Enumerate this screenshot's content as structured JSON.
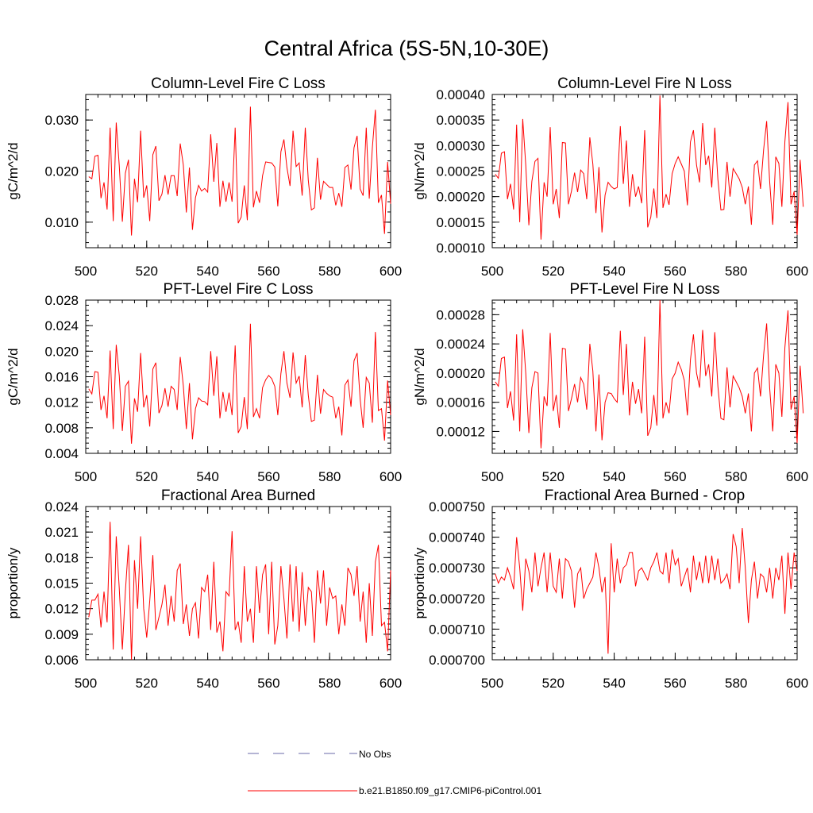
{
  "figure": {
    "title": "Central Africa (5S-5N,10-30E)",
    "series_color": "#ff0000",
    "obs_color": "#6a6aa8",
    "legend": [
      {
        "label": "No Obs",
        "style": "dashed",
        "color": "#6a6aa8"
      },
      {
        "label": "b.e21.B1850.f09_g17.CMIP6-piControl.001",
        "style": "solid",
        "color": "#ff0000"
      }
    ]
  },
  "chart_data": [
    {
      "type": "line",
      "title": "Column-Level Fire C Loss",
      "xlabel": "",
      "ylabel": "gC/m^2/d",
      "xlim": [
        500,
        600
      ],
      "ylim": [
        0.005,
        0.035
      ],
      "xticks": [
        "500",
        "520",
        "540",
        "560",
        "580",
        "600"
      ],
      "yticks": [
        0.01,
        0.02,
        0.03
      ],
      "yticklabels": [
        "0.010",
        "0.020",
        "0.030"
      ],
      "series": [
        {
          "name": "b.e21.B1850.f09_g17.CMIP6-piControl.001",
          "x_start": 501,
          "x_step": 1,
          "values": [
            0.0189,
            0.0185,
            0.0229,
            0.0231,
            0.0147,
            0.0178,
            0.0125,
            0.0285,
            0.0102,
            0.0295,
            0.0211,
            0.0101,
            0.0196,
            0.0222,
            0.0074,
            0.0185,
            0.0139,
            0.0279,
            0.0148,
            0.0172,
            0.0102,
            0.0232,
            0.0249,
            0.0142,
            0.0155,
            0.0192,
            0.0154,
            0.0191,
            0.0191,
            0.0151,
            0.0254,
            0.0212,
            0.0119,
            0.0207,
            0.0085,
            0.0148,
            0.0172,
            0.0161,
            0.0166,
            0.0159,
            0.0272,
            0.0179,
            0.0255,
            0.013,
            0.0181,
            0.014,
            0.0178,
            0.014,
            0.0285,
            0.0098,
            0.011,
            0.0172,
            0.0104,
            0.0326,
            0.0129,
            0.0161,
            0.0138,
            0.0191,
            0.0218,
            0.0217,
            0.0216,
            0.0208,
            0.0131,
            0.0238,
            0.0262,
            0.0207,
            0.0171,
            0.0279,
            0.0209,
            0.0216,
            0.0152,
            0.0285,
            0.0182,
            0.0124,
            0.0128,
            0.0226,
            0.0144,
            0.018,
            0.0174,
            0.0168,
            0.0168,
            0.0133,
            0.0157,
            0.013,
            0.0207,
            0.0212,
            0.0164,
            0.0246,
            0.0269,
            0.0165,
            0.0152,
            0.0285,
            0.0146,
            0.0246,
            0.032,
            0.0138,
            0.0153,
            0.0077,
            0.0218,
            0.0136
          ]
        }
      ]
    },
    {
      "type": "line",
      "title": "Column-Level Fire N Loss",
      "xlabel": "",
      "ylabel": "gN/m^2/d",
      "xlim": [
        500,
        600
      ],
      "ylim": [
        0.0001,
        0.0004
      ],
      "xticks": [
        "500",
        "520",
        "540",
        "560",
        "580",
        "600"
      ],
      "yticks": [
        0.0001,
        0.00015,
        0.0002,
        0.00025,
        0.0003,
        0.00035,
        0.0004
      ],
      "yticklabels": [
        "0.00010",
        "0.00015",
        "0.00020",
        "0.00025",
        "0.00030",
        "0.00035",
        "0.00040"
      ],
      "series": [
        {
          "name": "b.e21.B1850.f09_g17.CMIP6-piControl.001",
          "x_start": 501,
          "x_step": 1,
          "values": [
            0.000244,
            0.000236,
            0.000285,
            0.000288,
            0.000195,
            0.000225,
            0.000175,
            0.000341,
            0.00015,
            0.000352,
            0.000262,
            0.000144,
            0.00023,
            0.000269,
            0.000275,
            0.000116,
            0.000228,
            0.0002,
            0.000336,
            0.000185,
            0.000215,
            0.000158,
            0.000306,
            0.000305,
            0.000185,
            0.000211,
            0.000247,
            0.000209,
            0.000252,
            0.000245,
            0.000195,
            0.000316,
            0.000264,
            0.000168,
            0.000258,
            0.00013,
            0.000203,
            0.000228,
            0.00022,
            0.000215,
            0.000218,
            0.000338,
            0.000225,
            0.00031,
            0.00018,
            0.000244,
            0.0002,
            0.00022,
            0.000187,
            0.00033,
            0.00014,
            0.00016,
            0.000216,
            0.000158,
            0.000398,
            0.000178,
            0.000205,
            0.000184,
            0.000245,
            0.000265,
            0.000278,
            0.000264,
            0.00025,
            0.000183,
            0.000307,
            0.00033,
            0.000262,
            0.000228,
            0.000344,
            0.000262,
            0.00028,
            0.000218,
            0.000335,
            0.000234,
            0.000174,
            0.000175,
            0.000268,
            0.0002,
            0.000255,
            0.000245,
            0.000235,
            0.000218,
            0.000185,
            0.00022,
            0.000145,
            0.000262,
            0.00027,
            0.000215,
            0.000292,
            0.000348,
            0.00023,
            0.000145,
            0.000278,
            0.000265,
            0.00018,
            0.000308,
            0.000385,
            0.000185,
            0.00021,
            0.000125,
            0.000272,
            0.00018
          ]
        }
      ]
    },
    {
      "type": "line",
      "title": "PFT-Level Fire C Loss",
      "xlabel": "",
      "ylabel": "gC/m^2/d",
      "xlim": [
        500,
        600
      ],
      "ylim": [
        0.004,
        0.028
      ],
      "xticks": [
        "500",
        "520",
        "540",
        "560",
        "580",
        "600"
      ],
      "yticks": [
        0.004,
        0.008,
        0.012,
        0.016,
        0.02,
        0.024,
        0.028
      ],
      "yticklabels": [
        "0.004",
        "0.008",
        "0.012",
        "0.016",
        "0.020",
        "0.024",
        "0.028"
      ],
      "series": [
        {
          "name": "b.e21.B1850.f09_g17.CMIP6-piControl.001",
          "x_start": 501,
          "x_step": 1,
          "values": [
            0.0141,
            0.0133,
            0.0168,
            0.0167,
            0.0108,
            0.013,
            0.0095,
            0.0201,
            0.0078,
            0.021,
            0.0162,
            0.0075,
            0.0145,
            0.0153,
            0.0055,
            0.0126,
            0.0105,
            0.0197,
            0.0112,
            0.0131,
            0.0082,
            0.0172,
            0.0182,
            0.0103,
            0.0115,
            0.0142,
            0.0113,
            0.0145,
            0.014,
            0.0108,
            0.0191,
            0.0146,
            0.0078,
            0.015,
            0.0062,
            0.011,
            0.0127,
            0.0122,
            0.0121,
            0.0116,
            0.02,
            0.013,
            0.0192,
            0.0095,
            0.0136,
            0.0105,
            0.0135,
            0.01,
            0.0209,
            0.0072,
            0.0082,
            0.0128,
            0.0078,
            0.0243,
            0.0097,
            0.011,
            0.0095,
            0.0143,
            0.0155,
            0.0162,
            0.0157,
            0.0145,
            0.01,
            0.0165,
            0.02,
            0.015,
            0.0127,
            0.0198,
            0.015,
            0.0161,
            0.0112,
            0.0194,
            0.0131,
            0.009,
            0.0092,
            0.0163,
            0.0102,
            0.014,
            0.0134,
            0.013,
            0.0128,
            0.0095,
            0.0113,
            0.0068,
            0.0147,
            0.0155,
            0.0113,
            0.0185,
            0.0197,
            0.0125,
            0.008,
            0.0159,
            0.015,
            0.0088,
            0.023,
            0.0107,
            0.011,
            0.006,
            0.0154,
            0.01
          ]
        }
      ]
    },
    {
      "type": "line",
      "title": "PFT-Level Fire N Loss",
      "xlabel": "",
      "ylabel": "gN/m^2/d",
      "xlim": [
        500,
        600
      ],
      "ylim": [
        9e-05,
        0.0003
      ],
      "xticks": [
        "500",
        "520",
        "540",
        "560",
        "580",
        "600"
      ],
      "yticks": [
        0.00012,
        0.00016,
        0.0002,
        0.00024,
        0.00028
      ],
      "yticklabels": [
        "0.00012",
        "0.00016",
        "0.00020",
        "0.00024",
        "0.00028"
      ],
      "series": [
        {
          "name": "b.e21.B1850.f09_g17.CMIP6-piControl.001",
          "x_start": 501,
          "x_step": 1,
          "values": [
            0.000188,
            0.000182,
            0.00022,
            0.000222,
            0.000152,
            0.000175,
            0.000135,
            0.000253,
            0.00012,
            0.00026,
            0.0002,
            0.000118,
            0.00018,
            0.000202,
            0.0002,
            9.7e-05,
            0.000168,
            0.000155,
            0.000255,
            0.000148,
            0.00017,
            0.000125,
            0.000234,
            0.000233,
            0.000148,
            0.000165,
            0.000185,
            0.00016,
            0.000194,
            0.000185,
            0.00015,
            0.00024,
            0.000203,
            0.00012,
            0.000198,
            0.000108,
            0.00016,
            0.000173,
            0.000172,
            0.000165,
            0.00016,
            0.000258,
            0.00017,
            0.00024,
            0.000142,
            0.000188,
            0.000158,
            0.000178,
            0.000145,
            0.00025,
            0.000114,
            0.000125,
            0.00017,
            0.000128,
            0.0003,
            0.000138,
            0.00016,
            0.000145,
            0.000192,
            0.0002,
            0.000215,
            0.000205,
            0.00019,
            0.000142,
            0.000218,
            0.000253,
            0.0002,
            0.00018,
            0.000259,
            0.000196,
            0.000212,
            0.000168,
            0.000256,
            0.000182,
            0.000138,
            0.000136,
            0.000208,
            0.000153,
            0.000196,
            0.000188,
            0.00018,
            0.000168,
            0.000145,
            0.000172,
            0.00012,
            0.0002,
            0.000207,
            0.000168,
            0.000225,
            0.000268,
            0.00018,
            0.00012,
            0.000212,
            0.0002,
            0.00014,
            0.000235,
            0.000286,
            0.00015,
            0.000168,
            0.000104,
            0.00021,
            0.000145
          ]
        }
      ]
    },
    {
      "type": "line",
      "title": "Fractional Area Burned",
      "xlabel": "",
      "ylabel": "proportion/y",
      "xlim": [
        500,
        600
      ],
      "ylim": [
        0.006,
        0.024
      ],
      "xticks": [
        "500",
        "520",
        "540",
        "560",
        "580",
        "600"
      ],
      "yticks": [
        0.006,
        0.009,
        0.012,
        0.015,
        0.018,
        0.021,
        0.024
      ],
      "yticklabels": [
        "0.006",
        "0.009",
        "0.012",
        "0.015",
        "0.018",
        "0.021",
        "0.024"
      ],
      "series": [
        {
          "name": "b.e21.B1850.f09_g17.CMIP6-piControl.001",
          "x_start": 501,
          "x_step": 1,
          "values": [
            0.011,
            0.013,
            0.013,
            0.0137,
            0.0098,
            0.014,
            0.0104,
            0.0222,
            0.0072,
            0.0205,
            0.0144,
            0.0072,
            0.014,
            0.0195,
            0.006,
            0.0177,
            0.012,
            0.0205,
            0.012,
            0.0086,
            0.0129,
            0.0183,
            0.0095,
            0.011,
            0.0125,
            0.0148,
            0.01,
            0.0135,
            0.0105,
            0.0165,
            0.0173,
            0.0102,
            0.0125,
            0.0088,
            0.012,
            0.0127,
            0.0085,
            0.0145,
            0.014,
            0.016,
            0.0095,
            0.0175,
            0.0092,
            0.0105,
            0.007,
            0.014,
            0.0135,
            0.0211,
            0.0095,
            0.0105,
            0.008,
            0.017,
            0.0105,
            0.012,
            0.008,
            0.017,
            0.0115,
            0.016,
            0.0172,
            0.009,
            0.0175,
            0.0078,
            0.01,
            0.017,
            0.0132,
            0.0085,
            0.0172,
            0.0105,
            0.017,
            0.0093,
            0.0163,
            0.01,
            0.0145,
            0.014,
            0.008,
            0.0165,
            0.0126,
            0.0165,
            0.01,
            0.0145,
            0.0132,
            0.0135,
            0.009,
            0.0125,
            0.01,
            0.0168,
            0.016,
            0.0135,
            0.017,
            0.0105,
            0.014,
            0.008,
            0.015,
            0.0088,
            0.0175,
            0.0195,
            0.01,
            0.0104,
            0.007,
            0.0165
          ]
        }
      ]
    },
    {
      "type": "line",
      "title": "Fractional Area Burned - Crop",
      "xlabel": "",
      "ylabel": "proportion/y",
      "xlim": [
        500,
        600
      ],
      "ylim": [
        0.0007,
        0.00075
      ],
      "xticks": [
        "500",
        "520",
        "540",
        "560",
        "580",
        "600"
      ],
      "yticks": [
        0.0007,
        0.00071,
        0.00072,
        0.00073,
        0.00074,
        0.00075
      ],
      "yticklabels": [
        "0.000700",
        "0.000710",
        "0.000720",
        "0.000730",
        "0.000740",
        "0.000750"
      ],
      "series": [
        {
          "name": "b.e21.B1850.f09_g17.CMIP6-piControl.001",
          "x_start": 501,
          "x_step": 1,
          "values": [
            0.000728,
            0.000725,
            0.000727,
            0.000726,
            0.00073,
            0.000727,
            0.000723,
            0.00074,
            0.00073,
            0.000716,
            0.000733,
            0.000729,
            0.000722,
            0.000735,
            0.000724,
            0.00073,
            0.000735,
            0.000722,
            0.000735,
            0.000724,
            0.000722,
            0.000733,
            0.00072,
            0.000733,
            0.000732,
            0.000729,
            0.000717,
            0.000728,
            0.00073,
            0.00072,
            0.000723,
            0.000725,
            0.000727,
            0.000735,
            0.00073,
            0.000722,
            0.000727,
            0.000702,
            0.000738,
            0.000722,
            0.000733,
            0.000725,
            0.00073,
            0.000731,
            0.000735,
            0.000735,
            0.000724,
            0.000729,
            0.00073,
            0.000728,
            0.000726,
            0.00073,
            0.000732,
            0.000735,
            0.000729,
            0.000728,
            0.000735,
            0.000725,
            0.000736,
            0.000731,
            0.000733,
            0.000724,
            0.000727,
            0.00073,
            0.000722,
            0.000734,
            0.000726,
            0.000732,
            0.000725,
            0.000734,
            0.000725,
            0.000734,
            0.000726,
            0.000733,
            0.000725,
            0.000726,
            0.000728,
            0.000723,
            0.000741,
            0.000737,
            0.000725,
            0.000743,
            0.00073,
            0.000712,
            0.000726,
            0.000732,
            0.00072,
            0.000728,
            0.000727,
            0.000722,
            0.00073,
            0.00072,
            0.00073,
            0.000726,
            0.000734,
            0.000715,
            0.000735,
            0.000723,
            0.000735,
            0.000729
          ]
        }
      ]
    }
  ]
}
